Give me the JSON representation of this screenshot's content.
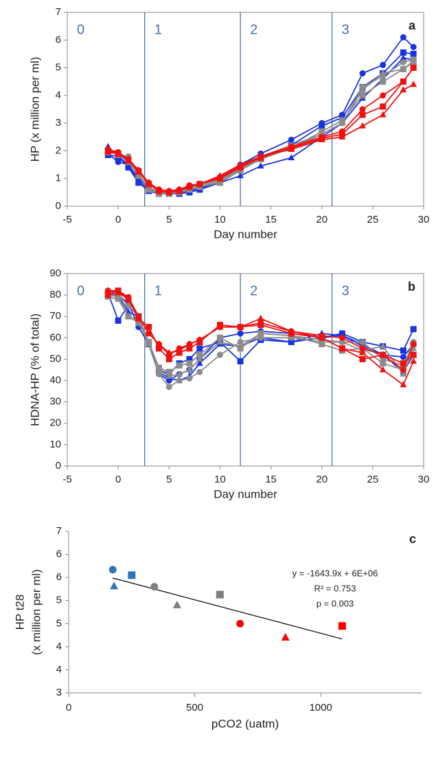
{
  "chart_data": [
    {
      "type": "line",
      "panel_label": "a",
      "xlabel": "Day number",
      "ylabel": "HP  (x million per ml)",
      "xlim": [
        -5,
        30
      ],
      "xticks": [
        -5,
        0,
        5,
        10,
        15,
        20,
        25,
        30
      ],
      "ylim": [
        0,
        7
      ],
      "yticks": [
        0,
        1,
        2,
        3,
        4,
        5,
        6,
        7
      ],
      "phase_lines": [
        2.6,
        12,
        21
      ],
      "phase_labels": [
        "0",
        "1",
        "2",
        "3"
      ],
      "phase_color": "#4a6fa5",
      "x": [
        -1,
        0,
        1,
        2,
        3,
        4,
        5,
        6,
        7,
        8,
        10,
        12,
        14,
        17,
        20,
        22,
        24,
        26,
        28,
        29
      ],
      "series": [
        {
          "color": "#1a33e0",
          "marker": "circle",
          "values": [
            1.9,
            1.6,
            1.5,
            1.0,
            0.6,
            0.5,
            0.5,
            0.55,
            0.7,
            0.8,
            1.0,
            1.5,
            1.9,
            2.4,
            3.0,
            3.3,
            4.8,
            5.1,
            6.1,
            5.75
          ]
        },
        {
          "color": "#1a33e0",
          "marker": "square",
          "values": [
            1.85,
            1.8,
            1.4,
            0.85,
            0.55,
            0.45,
            0.45,
            0.45,
            0.5,
            0.6,
            0.85,
            1.3,
            1.7,
            2.2,
            2.9,
            3.2,
            4.3,
            4.8,
            5.55,
            5.5
          ]
        },
        {
          "color": "#1a33e0",
          "marker": "triangle",
          "values": [
            2.15,
            1.8,
            1.5,
            0.9,
            0.55,
            0.45,
            0.45,
            0.5,
            0.55,
            0.65,
            0.85,
            1.1,
            1.45,
            1.75,
            2.5,
            3.0,
            3.9,
            4.6,
            5.35,
            5.3
          ]
        },
        {
          "color": "#8c8c8c",
          "marker": "circle",
          "values": [
            2.0,
            1.85,
            1.8,
            1.1,
            0.65,
            0.5,
            0.5,
            0.5,
            0.65,
            0.75,
            0.95,
            1.4,
            1.8,
            2.2,
            2.6,
            3.0,
            4.3,
            4.7,
            5.2,
            5.3
          ]
        },
        {
          "color": "#8c8c8c",
          "marker": "square",
          "values": [
            1.95,
            1.9,
            1.6,
            1.1,
            0.6,
            0.45,
            0.45,
            0.5,
            0.6,
            0.7,
            0.85,
            1.3,
            1.7,
            2.1,
            2.7,
            3.1,
            4.0,
            4.5,
            4.95,
            5.25
          ]
        },
        {
          "color": "#8c8c8c",
          "marker": "triangle",
          "values": [
            2.0,
            1.85,
            1.6,
            1.15,
            0.7,
            0.5,
            0.5,
            0.5,
            0.6,
            0.7,
            0.9,
            1.35,
            1.7,
            2.1,
            2.6,
            3.0,
            4.2,
            4.8,
            4.95,
            5.2
          ]
        },
        {
          "color": "#ee1111",
          "marker": "circle",
          "values": [
            2.05,
            1.95,
            1.7,
            1.3,
            0.85,
            0.6,
            0.55,
            0.6,
            0.75,
            0.8,
            1.05,
            1.45,
            1.8,
            2.15,
            2.5,
            2.7,
            3.5,
            4.0,
            4.5,
            5.0
          ]
        },
        {
          "color": "#ee1111",
          "marker": "square",
          "values": [
            2.0,
            1.9,
            1.65,
            1.25,
            0.8,
            0.55,
            0.5,
            0.55,
            0.7,
            0.8,
            1.0,
            1.4,
            1.75,
            2.1,
            2.45,
            2.6,
            3.3,
            3.6,
            4.5,
            5.0
          ]
        },
        {
          "color": "#ee1111",
          "marker": "triangle",
          "values": [
            1.95,
            1.9,
            1.7,
            1.3,
            0.85,
            0.6,
            0.55,
            0.6,
            0.75,
            0.8,
            1.1,
            1.5,
            1.8,
            2.05,
            2.4,
            2.5,
            2.9,
            3.3,
            4.2,
            4.4
          ]
        }
      ]
    },
    {
      "type": "line",
      "panel_label": "b",
      "xlabel": "Day number",
      "ylabel": "HDNA-HP (% of total)",
      "xlim": [
        -5,
        30
      ],
      "xticks": [
        -5,
        0,
        5,
        10,
        15,
        20,
        25,
        30
      ],
      "ylim": [
        0,
        90
      ],
      "yticks": [
        0,
        10,
        20,
        30,
        40,
        50,
        60,
        70,
        80,
        90
      ],
      "phase_lines": [
        2.6,
        12,
        21
      ],
      "phase_labels": [
        "0",
        "1",
        "2",
        "3"
      ],
      "phase_color": "#4a6fa5",
      "x": [
        -1,
        0,
        1,
        2,
        3,
        4,
        5,
        6,
        7,
        8,
        10,
        12,
        14,
        17,
        20,
        22,
        24,
        26,
        28,
        29
      ],
      "series": [
        {
          "color": "#1a33e0",
          "marker": "circle",
          "values": [
            81,
            80,
            76,
            65,
            57,
            43,
            40,
            43,
            45,
            50,
            60,
            62,
            63,
            62,
            60,
            61,
            57,
            52,
            51,
            57
          ]
        },
        {
          "color": "#1a33e0",
          "marker": "square",
          "values": [
            81,
            68,
            75,
            70,
            57,
            45,
            43,
            48,
            50,
            55,
            58,
            49,
            59,
            58,
            60,
            62,
            58,
            56,
            54,
            64
          ]
        },
        {
          "color": "#1a33e0",
          "marker": "triangle",
          "values": [
            80,
            80,
            72,
            70,
            57,
            44,
            41,
            40,
            42,
            48,
            57,
            56,
            60,
            58,
            62,
            61,
            56,
            52,
            44,
            52
          ]
        },
        {
          "color": "#8c8c8c",
          "marker": "circle",
          "values": [
            80,
            80,
            75,
            70,
            58,
            43,
            37,
            40,
            41,
            44,
            52,
            58,
            60,
            60,
            58,
            58,
            58,
            50,
            47,
            58
          ]
        },
        {
          "color": "#8c8c8c",
          "marker": "square",
          "values": [
            80,
            79,
            70,
            67,
            58,
            46,
            44,
            47,
            48,
            52,
            60,
            55,
            62,
            61,
            57,
            54,
            55,
            48,
            45,
            57
          ]
        },
        {
          "color": "#8c8c8c",
          "marker": "triangle",
          "values": [
            79,
            78,
            70,
            68,
            57,
            45,
            42,
            43,
            45,
            50,
            58,
            56,
            62,
            61,
            59,
            58,
            54,
            56,
            43,
            55
          ]
        },
        {
          "color": "#ee1111",
          "marker": "circle",
          "values": [
            82,
            82,
            79,
            70,
            62,
            57,
            52,
            55,
            57,
            59,
            65,
            65,
            67,
            63,
            61,
            60,
            55,
            52,
            45,
            57
          ]
        },
        {
          "color": "#ee1111",
          "marker": "square",
          "values": [
            80,
            82,
            78,
            69,
            65,
            55,
            50,
            53,
            55,
            58,
            66,
            65,
            66,
            62,
            60,
            55,
            50,
            52,
            48,
            52
          ]
        },
        {
          "color": "#ee1111",
          "marker": "triangle",
          "values": [
            82,
            81,
            78,
            70,
            62,
            57,
            53,
            54,
            57,
            59,
            65,
            65,
            69,
            63,
            60,
            55,
            53,
            45,
            38,
            49
          ]
        }
      ]
    },
    {
      "type": "scatter",
      "panel_label": "c",
      "xlabel": "pCO2 (uatm)",
      "ylabel_lines": [
        "HP t28",
        "(x million per ml)"
      ],
      "xlim": [
        0,
        1400
      ],
      "xticks": [
        0,
        500,
        1000
      ],
      "ylim": [
        3,
        6.5
      ],
      "yticks": [
        3,
        {
          "value": 3.5,
          "label": "4"
        },
        4,
        {
          "value": 4.5,
          "label": "5"
        },
        5,
        {
          "value": 5.5,
          "label": "6"
        },
        6,
        {
          "value": 6.5,
          "label": "7"
        }
      ],
      "trendline": true,
      "annotations": [
        "y = -1643.9x + 6E+06",
        "R² = 0.753",
        "p = 0.003"
      ],
      "x": [
        175,
        180,
        250,
        340,
        430,
        600,
        680,
        860,
        1085
      ],
      "y": [
        5.67,
        5.31,
        5.55,
        5.3,
        4.9,
        5.13,
        4.5,
        4.2,
        4.45
      ],
      "colors": [
        "#2e75b6",
        "#2e75b6",
        "#2e75b6",
        "#7f7f7f",
        "#7f7f7f",
        "#7f7f7f",
        "#ff0000",
        "#ff0000",
        "#ff0000"
      ],
      "markers": [
        "circle",
        "triangle",
        "square",
        "circle",
        "triangle",
        "square",
        "circle",
        "triangle",
        "square"
      ]
    }
  ]
}
